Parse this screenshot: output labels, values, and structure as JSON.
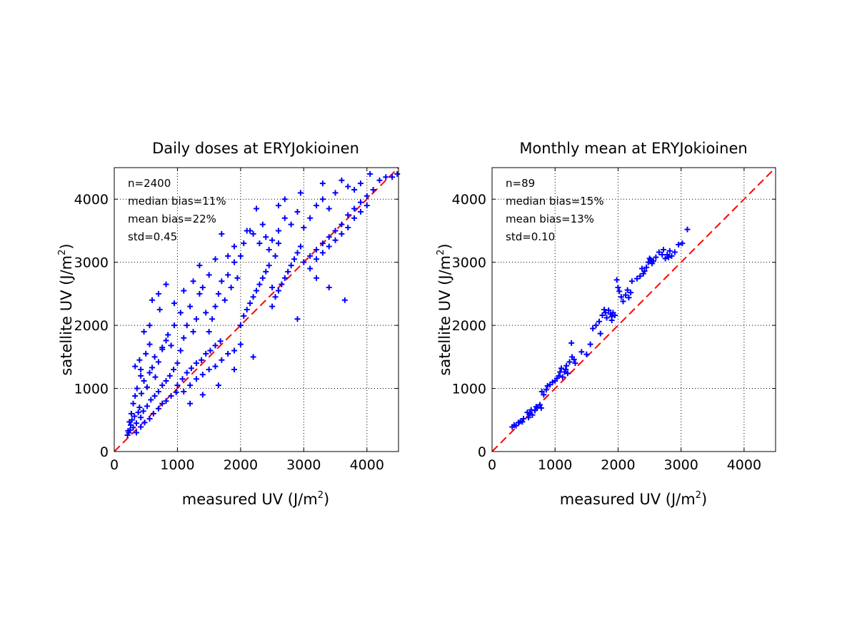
{
  "chart_data": [
    {
      "type": "scatter",
      "title": "Daily doses at ERYJokioinen",
      "xlabel": "measured UV (J/m",
      "ylabel": "satellite UV (J/m",
      "label_superscript": "2",
      "label_close": ")",
      "xlim": [
        0,
        4500
      ],
      "ylim": [
        0,
        4500
      ],
      "xticks": [
        0,
        1000,
        2000,
        3000,
        4000
      ],
      "yticks": [
        0,
        1000,
        2000,
        3000,
        4000
      ],
      "grid": true,
      "marker": "+",
      "marker_color": "#0000ff",
      "reference_line": {
        "style": "dashed",
        "color": "#ff0000",
        "from": [
          0,
          0
        ],
        "to": [
          4500,
          4500
        ]
      },
      "annotations": [
        "n=2400",
        "median bias=11%",
        "mean bias=22%",
        "std=0.45"
      ],
      "points": [
        [
          210,
          260
        ],
        [
          230,
          300
        ],
        [
          250,
          340
        ],
        [
          260,
          420
        ],
        [
          280,
          500
        ],
        [
          300,
          380
        ],
        [
          320,
          560
        ],
        [
          350,
          450
        ],
        [
          380,
          620
        ],
        [
          400,
          700
        ],
        [
          220,
          330
        ],
        [
          240,
          470
        ],
        [
          270,
          600
        ],
        [
          300,
          760
        ],
        [
          330,
          880
        ],
        [
          360,
          1000
        ],
        [
          420,
          1300
        ],
        [
          500,
          1550
        ],
        [
          560,
          1700
        ],
        [
          640,
          1500
        ],
        [
          430,
          920
        ],
        [
          470,
          1120
        ],
        [
          520,
          1020
        ],
        [
          560,
          1250
        ],
        [
          600,
          1330
        ],
        [
          650,
          1180
        ],
        [
          700,
          1420
        ],
        [
          760,
          1620
        ],
        [
          820,
          1760
        ],
        [
          900,
          1680
        ],
        [
          420,
          540
        ],
        [
          460,
          640
        ],
        [
          520,
          720
        ],
        [
          580,
          820
        ],
        [
          640,
          880
        ],
        [
          700,
          950
        ],
        [
          760,
          1050
        ],
        [
          820,
          1120
        ],
        [
          880,
          1200
        ],
        [
          940,
          1300
        ],
        [
          350,
          300
        ],
        [
          420,
          390
        ],
        [
          480,
          460
        ],
        [
          560,
          520
        ],
        [
          620,
          600
        ],
        [
          700,
          680
        ],
        [
          760,
          760
        ],
        [
          820,
          800
        ],
        [
          900,
          880
        ],
        [
          980,
          940
        ],
        [
          1000,
          1400
        ],
        [
          1050,
          1600
        ],
        [
          1100,
          1800
        ],
        [
          1150,
          2000
        ],
        [
          1200,
          2300
        ],
        [
          1250,
          1900
        ],
        [
          1300,
          2100
        ],
        [
          1350,
          2500
        ],
        [
          1400,
          2600
        ],
        [
          1450,
          2200
        ],
        [
          1000,
          1050
        ],
        [
          1080,
          1150
        ],
        [
          1150,
          1250
        ],
        [
          1220,
          1320
        ],
        [
          1300,
          1400
        ],
        [
          1380,
          1450
        ],
        [
          1450,
          1550
        ],
        [
          1520,
          1600
        ],
        [
          1600,
          1680
        ],
        [
          1680,
          1750
        ],
        [
          1100,
          950
        ],
        [
          1200,
          1050
        ],
        [
          1300,
          1150
        ],
        [
          1400,
          1220
        ],
        [
          1500,
          1300
        ],
        [
          1600,
          1350
        ],
        [
          1700,
          1450
        ],
        [
          1800,
          1550
        ],
        [
          1900,
          1600
        ],
        [
          2000,
          1700
        ],
        [
          1500,
          1900
        ],
        [
          1550,
          2100
        ],
        [
          1600,
          2300
        ],
        [
          1650,
          2500
        ],
        [
          1700,
          2700
        ],
        [
          1750,
          2400
        ],
        [
          1800,
          2800
        ],
        [
          1850,
          2600
        ],
        [
          1900,
          3000
        ],
        [
          1950,
          2750
        ],
        [
          2000,
          2000
        ],
        [
          2050,
          2150
        ],
        [
          2100,
          2250
        ],
        [
          2150,
          2350
        ],
        [
          2200,
          2450
        ],
        [
          2250,
          2550
        ],
        [
          2300,
          2650
        ],
        [
          2350,
          2750
        ],
        [
          2400,
          2850
        ],
        [
          2450,
          2950
        ],
        [
          2000,
          3100
        ],
        [
          2050,
          3300
        ],
        [
          2100,
          3500
        ],
        [
          2200,
          3450
        ],
        [
          2300,
          3300
        ],
        [
          2400,
          3400
        ],
        [
          2450,
          3200
        ],
        [
          2500,
          3350
        ],
        [
          2550,
          3100
        ],
        [
          2600,
          3300
        ],
        [
          2500,
          2300
        ],
        [
          2550,
          2450
        ],
        [
          2600,
          2550
        ],
        [
          2650,
          2650
        ],
        [
          2700,
          2750
        ],
        [
          2750,
          2850
        ],
        [
          2800,
          2950
        ],
        [
          2850,
          3050
        ],
        [
          2900,
          3150
        ],
        [
          2950,
          3250
        ],
        [
          2600,
          3500
        ],
        [
          2700,
          3700
        ],
        [
          2800,
          3600
        ],
        [
          2900,
          3800
        ],
        [
          3000,
          3550
        ],
        [
          3100,
          3700
        ],
        [
          3200,
          3900
        ],
        [
          3300,
          4000
        ],
        [
          3400,
          3850
        ],
        [
          3500,
          4100
        ],
        [
          3000,
          3000
        ],
        [
          3100,
          3100
        ],
        [
          3200,
          3200
        ],
        [
          3300,
          3300
        ],
        [
          3400,
          3400
        ],
        [
          3500,
          3500
        ],
        [
          3600,
          3600
        ],
        [
          3700,
          3750
        ],
        [
          3800,
          3850
        ],
        [
          3900,
          3950
        ],
        [
          3100,
          2900
        ],
        [
          3200,
          3050
        ],
        [
          3300,
          3150
        ],
        [
          3400,
          3250
        ],
        [
          3500,
          3350
        ],
        [
          3600,
          3450
        ],
        [
          3700,
          3550
        ],
        [
          3800,
          3700
        ],
        [
          3900,
          3800
        ],
        [
          4000,
          3900
        ],
        [
          3600,
          4300
        ],
        [
          3700,
          4200
        ],
        [
          3800,
          4150
        ],
        [
          3900,
          4250
        ],
        [
          4000,
          4050
        ],
        [
          4100,
          4150
        ],
        [
          4200,
          4300
        ],
        [
          4300,
          4350
        ],
        [
          4400,
          4350
        ],
        [
          4480,
          4400
        ],
        [
          3650,
          2400
        ],
        [
          3400,
          2600
        ],
        [
          3200,
          2750
        ],
        [
          2900,
          2100
        ],
        [
          2500,
          2600
        ],
        [
          2200,
          1500
        ],
        [
          1900,
          1300
        ],
        [
          1650,
          1050
        ],
        [
          1400,
          900
        ],
        [
          1200,
          760
        ],
        [
          330,
          1350
        ],
        [
          420,
          1200
        ],
        [
          400,
          1450
        ],
        [
          470,
          1900
        ],
        [
          560,
          2000
        ],
        [
          720,
          2250
        ],
        [
          700,
          2500
        ],
        [
          820,
          2650
        ],
        [
          950,
          2350
        ],
        [
          600,
          2400
        ],
        [
          1700,
          3450
        ],
        [
          1900,
          3250
        ],
        [
          2150,
          3500
        ],
        [
          2350,
          3600
        ],
        [
          2250,
          3850
        ],
        [
          2600,
          3900
        ],
        [
          2700,
          4000
        ],
        [
          2950,
          4100
        ],
        [
          3300,
          4250
        ],
        [
          4050,
          4400
        ],
        [
          1100,
          2550
        ],
        [
          1250,
          2700
        ],
        [
          1350,
          2950
        ],
        [
          1500,
          2800
        ],
        [
          1600,
          3050
        ],
        [
          1800,
          3100
        ],
        [
          1050,
          2200
        ],
        [
          950,
          2000
        ],
        [
          850,
          1850
        ],
        [
          760,
          1650
        ]
      ]
    },
    {
      "type": "scatter",
      "title": "Monthly mean at ERYJokioinen",
      "xlabel": "measured UV (J/m",
      "ylabel": "satellite UV (J/m",
      "label_superscript": "2",
      "label_close": ")",
      "xlim": [
        0,
        4500
      ],
      "ylim": [
        0,
        4500
      ],
      "xticks": [
        0,
        1000,
        2000,
        3000,
        4000
      ],
      "yticks": [
        0,
        1000,
        2000,
        3000,
        4000
      ],
      "grid": true,
      "marker": "+",
      "marker_color": "#0000ff",
      "reference_line": {
        "style": "dashed",
        "color": "#ff0000",
        "from": [
          0,
          0
        ],
        "to": [
          4500,
          4500
        ]
      },
      "annotations": [
        "n=89",
        "median bias=15%",
        "mean bias=13%",
        "std=0.10"
      ],
      "points": [
        [
          320,
          390
        ],
        [
          350,
          420
        ],
        [
          380,
          410
        ],
        [
          420,
          460
        ],
        [
          450,
          480
        ],
        [
          500,
          520
        ],
        [
          560,
          620
        ],
        [
          580,
          540
        ],
        [
          600,
          600
        ],
        [
          620,
          660
        ],
        [
          640,
          580
        ],
        [
          680,
          650
        ],
        [
          700,
          710
        ],
        [
          720,
          700
        ],
        [
          760,
          740
        ],
        [
          780,
          690
        ],
        [
          790,
          950
        ],
        [
          820,
          900
        ],
        [
          880,
          1040
        ],
        [
          920,
          1060
        ],
        [
          960,
          1100
        ],
        [
          1000,
          1120
        ],
        [
          1030,
          1160
        ],
        [
          1060,
          1200
        ],
        [
          1080,
          1260
        ],
        [
          1100,
          1320
        ],
        [
          1120,
          1180
        ],
        [
          1150,
          1260
        ],
        [
          1170,
          1300
        ],
        [
          1200,
          1240
        ],
        [
          1230,
          1420
        ],
        [
          1260,
          1720
        ],
        [
          1270,
          1500
        ],
        [
          1300,
          1460
        ],
        [
          1320,
          1400
        ],
        [
          1420,
          1580
        ],
        [
          1500,
          1540
        ],
        [
          1600,
          1950
        ],
        [
          1650,
          2000
        ],
        [
          1700,
          2060
        ],
        [
          1720,
          1870
        ],
        [
          1750,
          2160
        ],
        [
          1780,
          2250
        ],
        [
          1800,
          2200
        ],
        [
          1820,
          2120
        ],
        [
          1850,
          2240
        ],
        [
          1880,
          2180
        ],
        [
          1900,
          2140
        ],
        [
          1920,
          2200
        ],
        [
          1950,
          2160
        ],
        [
          1980,
          2720
        ],
        [
          2000,
          2600
        ],
        [
          2020,
          2540
        ],
        [
          2050,
          2450
        ],
        [
          2080,
          2380
        ],
        [
          2120,
          2480
        ],
        [
          2150,
          2560
        ],
        [
          2170,
          2440
        ],
        [
          2200,
          2520
        ],
        [
          2220,
          2700
        ],
        [
          2300,
          2740
        ],
        [
          2350,
          2780
        ],
        [
          2400,
          2820
        ],
        [
          2420,
          2860
        ],
        [
          2450,
          2920
        ],
        [
          2480,
          3000
        ],
        [
          2500,
          3060
        ],
        [
          2520,
          3040
        ],
        [
          2540,
          2980
        ],
        [
          2560,
          3020
        ],
        [
          2600,
          3080
        ],
        [
          2650,
          3160
        ],
        [
          2700,
          3120
        ],
        [
          2720,
          3200
        ],
        [
          2750,
          3060
        ],
        [
          2780,
          3120
        ],
        [
          2800,
          3080
        ],
        [
          2820,
          3180
        ],
        [
          2850,
          3100
        ],
        [
          2900,
          3160
        ],
        [
          2960,
          3280
        ],
        [
          3020,
          3300
        ],
        [
          3100,
          3520
        ],
        [
          2380,
          2900
        ],
        [
          1900,
          2080
        ],
        [
          1560,
          1700
        ],
        [
          1180,
          1360
        ],
        [
          860,
          980
        ],
        [
          480,
          470
        ]
      ]
    }
  ]
}
